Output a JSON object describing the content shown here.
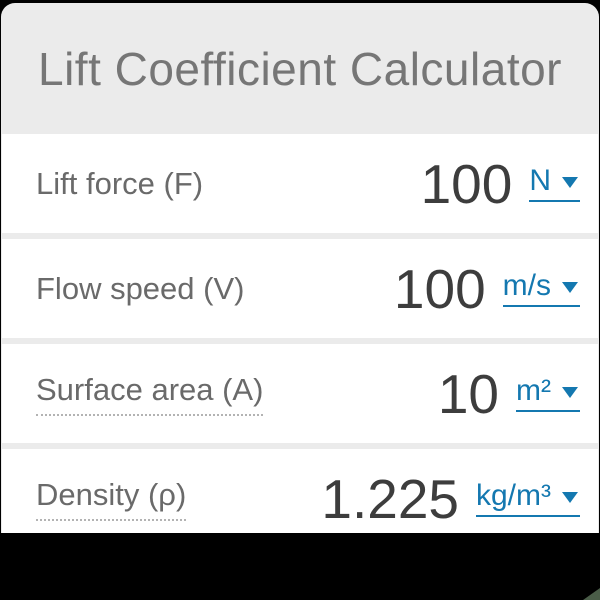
{
  "calculator": {
    "title": "Lift Coefficient Calculator"
  },
  "rows": [
    {
      "label": "Lift force (F)",
      "value": "100",
      "unit": "N",
      "has_tooltip": false
    },
    {
      "label": "Flow speed (V)",
      "value": "100",
      "unit": "m/s",
      "has_tooltip": false
    },
    {
      "label": "Surface area (A)",
      "value": "10",
      "unit": "m²",
      "has_tooltip": true
    },
    {
      "label": "Density (ρ)",
      "value": "1.225",
      "unit": "kg/m³",
      "has_tooltip": true
    }
  ],
  "icons": {
    "unit_caret": "caret-down (▼)"
  },
  "colors": {
    "page_background": "#000000",
    "card_background": "#ebebeb",
    "row_background": "#ffffff",
    "title_text": "#767676",
    "label_text": "#6a6a6a",
    "value_text": "#3d3d3d",
    "unit_link_blue": "#1478b0",
    "tooltip_dotted_underline": "#b3b3b3",
    "corner_accent_green": "#4a5d48"
  }
}
